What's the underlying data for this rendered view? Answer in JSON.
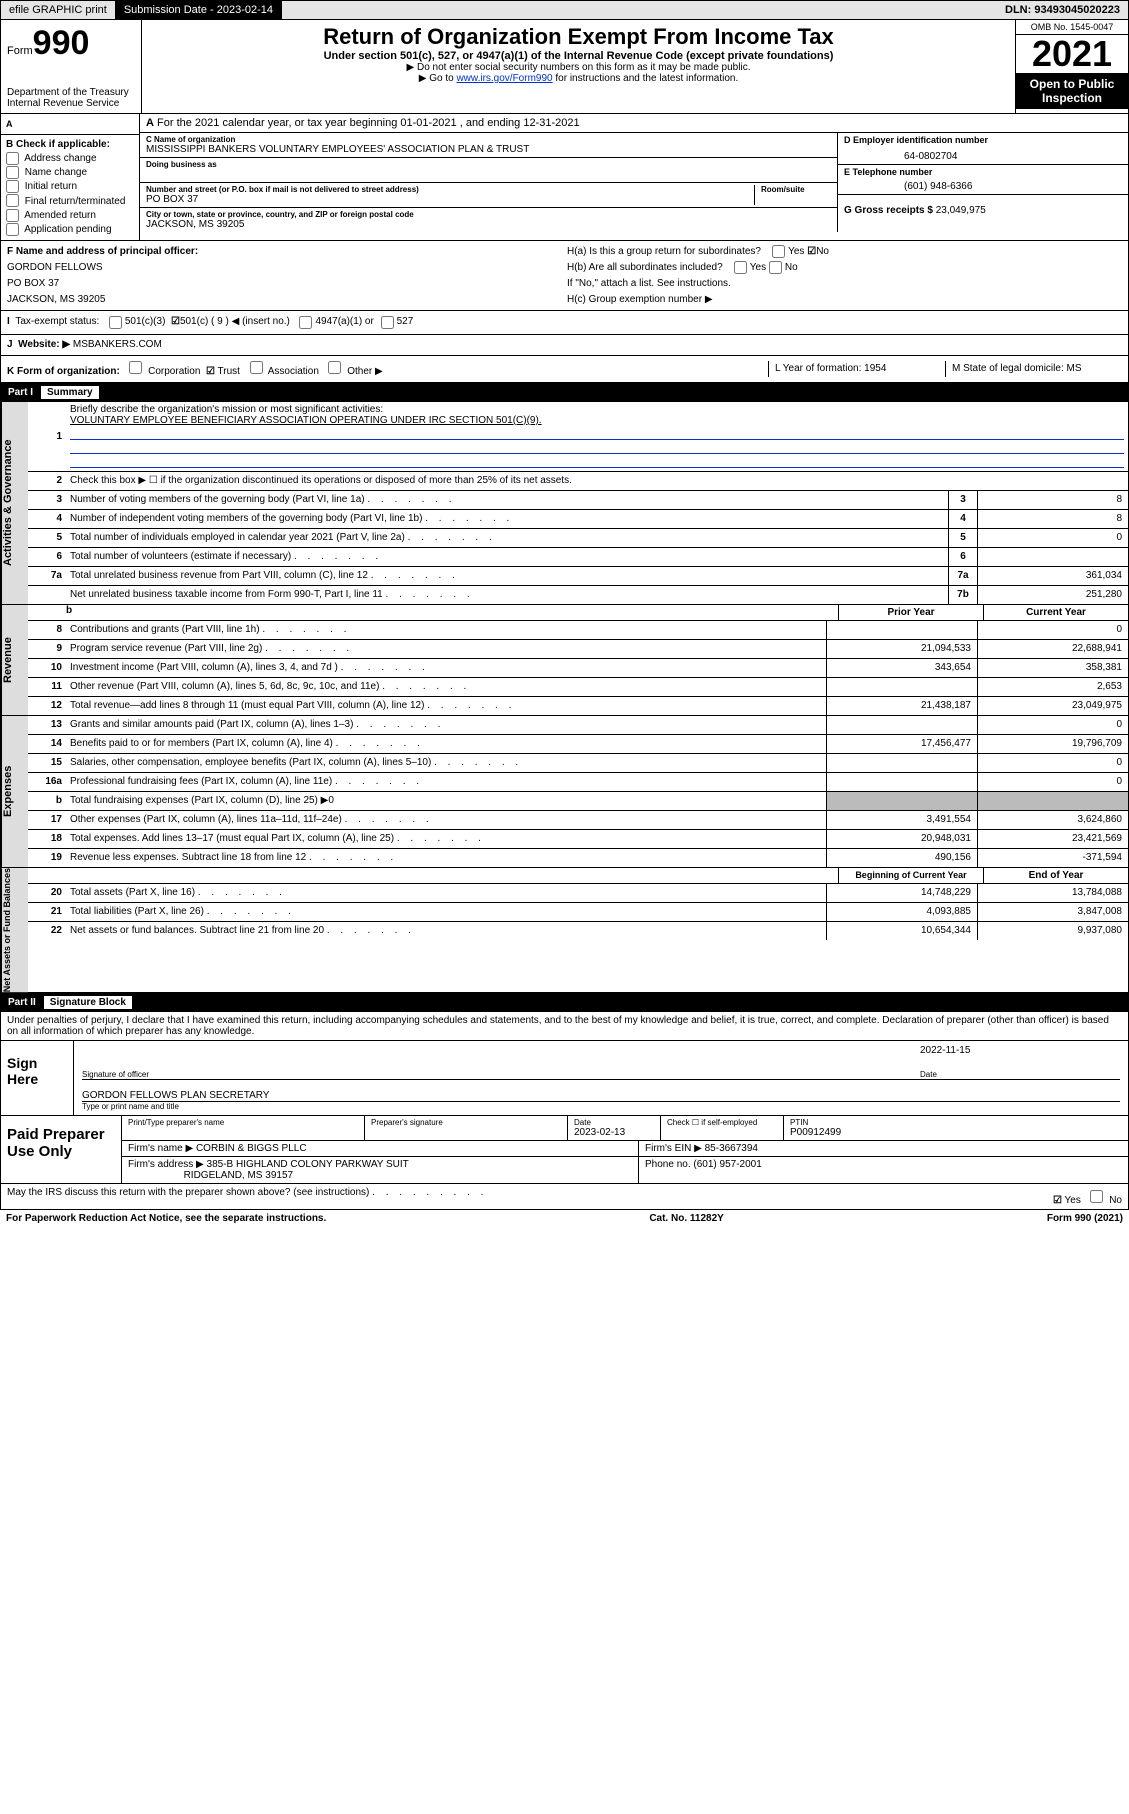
{
  "top": {
    "efile": "efile GRAPHIC print",
    "sub": "Submission Date - 2023-02-14",
    "dln": "DLN: 93493045020223"
  },
  "hdr": {
    "form": "Form",
    "num": "990",
    "dept": "Department of the Treasury",
    "irs": "Internal Revenue Service",
    "title": "Return of Organization Exempt From Income Tax",
    "sub": "Under section 501(c), 527, or 4947(a)(1) of the Internal Revenue Code (except private foundations)",
    "arrow1": "▶ Do not enter social security numbers on this form as it may be made public.",
    "arrow2_pre": "▶ Go to ",
    "arrow2_link": "www.irs.gov/Form990",
    "arrow2_post": " for instructions and the latest information.",
    "omb": "OMB No. 1545-0047",
    "year": "2021",
    "open": "Open to Public Inspection"
  },
  "A": {
    "taxyear": "For the 2021 calendar year, or tax year beginning 01-01-2021   , and ending 12-31-2021",
    "B": "B Check if applicable:",
    "b_items": [
      "Address change",
      "Name change",
      "Initial return",
      "Final return/terminated",
      "Amended return",
      "Application pending"
    ],
    "C_lbl": "C Name of organization",
    "C_val": "MISSISSIPPI BANKERS VOLUNTARY EMPLOYEES' ASSOCIATION PLAN & TRUST",
    "dba": "Doing business as",
    "addr_lbl": "Number and street (or P.O. box if mail is not delivered to street address)",
    "room": "Room/suite",
    "addr": "PO BOX 37",
    "city_lbl": "City or town, state or province, country, and ZIP or foreign postal code",
    "city": "JACKSON, MS  39205",
    "D_lbl": "D Employer identification number",
    "D_val": "64-0802704",
    "E_lbl": "E Telephone number",
    "E_val": "(601) 948-6366",
    "G_lbl": "G Gross receipts $",
    "G_val": "23,049,975",
    "F_lbl": "F  Name and address of principal officer:",
    "F_name": "GORDON FELLOWS",
    "F_addr1": "PO BOX 37",
    "F_addr2": "JACKSON, MS  39205",
    "I": "Tax-exempt status:",
    "I_a": "501(c)(3)",
    "I_b": "501(c) ( 9 ) ◀ (insert no.)",
    "I_c": "4947(a)(1) or",
    "I_d": "527",
    "J": "Website: ▶",
    "J_val": "MSBANKERS.COM",
    "Ha": "H(a)  Is this a group return for subordinates?",
    "Hb": "H(b)  Are all subordinates included?",
    "Hb2": "If \"No,\" attach a list. See instructions.",
    "Hc": "H(c)  Group exemption number ▶",
    "K": "K Form of organization:",
    "K_opts": [
      "Corporation",
      "Trust",
      "Association",
      "Other ▶"
    ],
    "L": "L Year of formation: 1954",
    "M": "M State of legal domicile: MS",
    "checkmark": "☑",
    "yes": "Yes",
    "no": "No"
  },
  "part1": {
    "title": "Part I",
    "sub": "Summary",
    "tab_gov": "Activities & Governance",
    "tab_rev": "Revenue",
    "tab_exp": "Expenses",
    "tab_net": "Net Assets or Fund Balances",
    "l1": "Briefly describe the organization's mission or most significant activities:",
    "l1v": "VOLUNTARY EMPLOYEE BENEFICIARY ASSOCIATION OPERATING UNDER IRC SECTION 501(C)(9).",
    "l2": "Check this box ▶ ☐  if the organization discontinued its operations or disposed of more than 25% of its net assets.",
    "lines_gov": [
      {
        "n": "3",
        "t": "Number of voting members of the governing body (Part VI, line 1a)",
        "b": "3",
        "v": "8"
      },
      {
        "n": "4",
        "t": "Number of independent voting members of the governing body (Part VI, line 1b)",
        "b": "4",
        "v": "8"
      },
      {
        "n": "5",
        "t": "Total number of individuals employed in calendar year 2021 (Part V, line 2a)",
        "b": "5",
        "v": "0"
      },
      {
        "n": "6",
        "t": "Total number of volunteers (estimate if necessary)",
        "b": "6",
        "v": ""
      },
      {
        "n": "7a",
        "t": "Total unrelated business revenue from Part VIII, column (C), line 12",
        "b": "7a",
        "v": "361,034"
      },
      {
        "n": "",
        "t": "Net unrelated business taxable income from Form 990-T, Part I, line 11",
        "b": "7b",
        "v": "251,280"
      }
    ],
    "col_b": "b",
    "col_prior": "Prior Year",
    "col_curr": "Current Year",
    "lines_rev": [
      {
        "n": "8",
        "t": "Contributions and grants (Part VIII, line 1h)",
        "p": "",
        "c": "0"
      },
      {
        "n": "9",
        "t": "Program service revenue (Part VIII, line 2g)",
        "p": "21,094,533",
        "c": "22,688,941"
      },
      {
        "n": "10",
        "t": "Investment income (Part VIII, column (A), lines 3, 4, and 7d )",
        "p": "343,654",
        "c": "358,381"
      },
      {
        "n": "11",
        "t": "Other revenue (Part VIII, column (A), lines 5, 6d, 8c, 9c, 10c, and 11e)",
        "p": "",
        "c": "2,653"
      },
      {
        "n": "12",
        "t": "Total revenue—add lines 8 through 11 (must equal Part VIII, column (A), line 12)",
        "p": "21,438,187",
        "c": "23,049,975"
      }
    ],
    "lines_exp": [
      {
        "n": "13",
        "t": "Grants and similar amounts paid (Part IX, column (A), lines 1–3)",
        "p": "",
        "c": "0"
      },
      {
        "n": "14",
        "t": "Benefits paid to or for members (Part IX, column (A), line 4)",
        "p": "17,456,477",
        "c": "19,796,709"
      },
      {
        "n": "15",
        "t": "Salaries, other compensation, employee benefits (Part IX, column (A), lines 5–10)",
        "p": "",
        "c": "0"
      },
      {
        "n": "16a",
        "t": "Professional fundraising fees (Part IX, column (A), line 11e)",
        "p": "",
        "c": "0"
      },
      {
        "n": "b",
        "t": "Total fundraising expenses (Part IX, column (D), line 25) ▶0",
        "shade": true
      },
      {
        "n": "17",
        "t": "Other expenses (Part IX, column (A), lines 11a–11d, 11f–24e)",
        "p": "3,491,554",
        "c": "3,624,860"
      },
      {
        "n": "18",
        "t": "Total expenses. Add lines 13–17 (must equal Part IX, column (A), line 25)",
        "p": "20,948,031",
        "c": "23,421,569"
      },
      {
        "n": "19",
        "t": "Revenue less expenses. Subtract line 18 from line 12",
        "p": "490,156",
        "c": "-371,594"
      }
    ],
    "col_beg": "Beginning of Current Year",
    "col_end": "End of Year",
    "lines_net": [
      {
        "n": "20",
        "t": "Total assets (Part X, line 16)",
        "p": "14,748,229",
        "c": "13,784,088"
      },
      {
        "n": "21",
        "t": "Total liabilities (Part X, line 26)",
        "p": "4,093,885",
        "c": "3,847,008"
      },
      {
        "n": "22",
        "t": "Net assets or fund balances. Subtract line 21 from line 20",
        "p": "10,654,344",
        "c": "9,937,080"
      }
    ]
  },
  "part2": {
    "title": "Part II",
    "sub": "Signature Block",
    "decl": "Under penalties of perjury, I declare that I have examined this return, including accompanying schedules and statements, and to the best of my knowledge and belief, it is true, correct, and complete. Declaration of preparer (other than officer) is based on all information of which preparer has any knowledge.",
    "sign": "Sign Here",
    "sig_officer": "Signature of officer",
    "date": "Date",
    "date_v": "2022-11-15",
    "name": "GORDON FELLOWS  PLAN SECRETARY",
    "name_lbl": "Type or print name and title",
    "prep": "Paid Preparer Use Only",
    "p_name_lbl": "Print/Type preparer's name",
    "p_sig_lbl": "Preparer's signature",
    "p_date_lbl": "Date",
    "p_date": "2023-02-13",
    "p_check": "Check ☐ if self-employed",
    "p_ptin_lbl": "PTIN",
    "p_ptin": "P00912499",
    "firm_lbl": "Firm's name    ▶",
    "firm": "CORBIN & BIGGS PLLC",
    "ein_lbl": "Firm's EIN ▶",
    "ein": "85-3667394",
    "faddr_lbl": "Firm's address ▶",
    "faddr1": "385-B HIGHLAND COLONY PARKWAY SUIT",
    "faddr2": "RIDGELAND, MS  39157",
    "fphone_lbl": "Phone no.",
    "fphone": "(601) 957-2001",
    "discuss": "May the IRS discuss this return with the preparer shown above? (see instructions)"
  },
  "footer": {
    "l": "For Paperwork Reduction Act Notice, see the separate instructions.",
    "m": "Cat. No. 11282Y",
    "r": "Form 990 (2021)"
  }
}
